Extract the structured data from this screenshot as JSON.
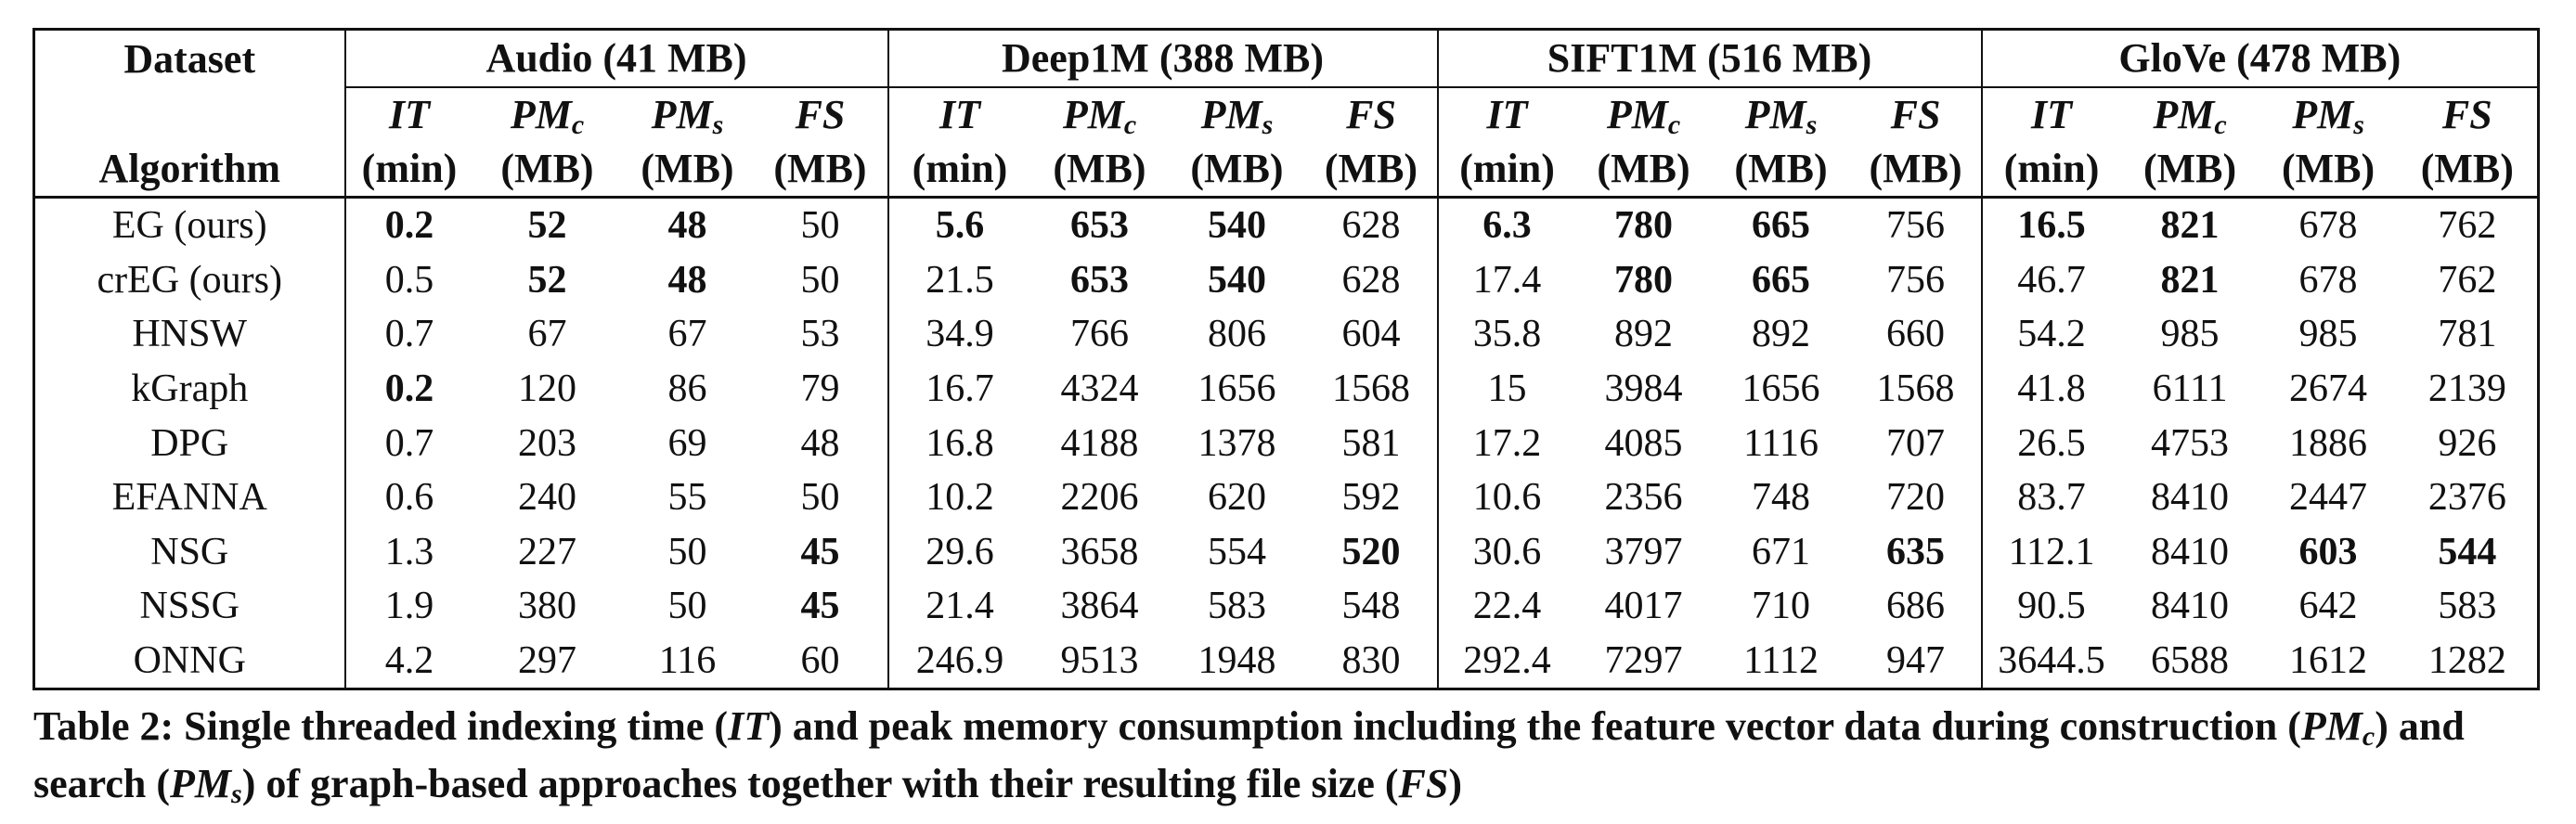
{
  "table": {
    "dataset_label": "Dataset",
    "algorithm_label": "Algorithm",
    "datasets": [
      {
        "name": "Audio (41 MB)"
      },
      {
        "name": "Deep1M (388 MB)"
      },
      {
        "name": "SIFT1M (516 MB)"
      },
      {
        "name": "GloVe (478 MB)"
      }
    ],
    "metrics": [
      {
        "main": "IT",
        "sub": "",
        "unit": "(min)"
      },
      {
        "main": "PM",
        "sub": "c",
        "unit": "(MB)"
      },
      {
        "main": "PM",
        "sub": "s",
        "unit": "(MB)"
      },
      {
        "main": "FS",
        "sub": "",
        "unit": "(MB)"
      }
    ],
    "rows": [
      {
        "algorithm": "EG (ours)",
        "values": [
          "0.2",
          "52",
          "48",
          "50",
          "5.6",
          "653",
          "540",
          "628",
          "6.3",
          "780",
          "665",
          "756",
          "16.5",
          "821",
          "678",
          "762"
        ],
        "bold": [
          true,
          true,
          true,
          false,
          true,
          true,
          true,
          false,
          true,
          true,
          true,
          false,
          true,
          true,
          false,
          false
        ]
      },
      {
        "algorithm": "crEG (ours)",
        "values": [
          "0.5",
          "52",
          "48",
          "50",
          "21.5",
          "653",
          "540",
          "628",
          "17.4",
          "780",
          "665",
          "756",
          "46.7",
          "821",
          "678",
          "762"
        ],
        "bold": [
          false,
          true,
          true,
          false,
          false,
          true,
          true,
          false,
          false,
          true,
          true,
          false,
          false,
          true,
          false,
          false
        ]
      },
      {
        "algorithm": "HNSW",
        "values": [
          "0.7",
          "67",
          "67",
          "53",
          "34.9",
          "766",
          "806",
          "604",
          "35.8",
          "892",
          "892",
          "660",
          "54.2",
          "985",
          "985",
          "781"
        ],
        "bold": [
          false,
          false,
          false,
          false,
          false,
          false,
          false,
          false,
          false,
          false,
          false,
          false,
          false,
          false,
          false,
          false
        ]
      },
      {
        "algorithm": "kGraph",
        "values": [
          "0.2",
          "120",
          "86",
          "79",
          "16.7",
          "4324",
          "1656",
          "1568",
          "15",
          "3984",
          "1656",
          "1568",
          "41.8",
          "6111",
          "2674",
          "2139"
        ],
        "bold": [
          true,
          false,
          false,
          false,
          false,
          false,
          false,
          false,
          false,
          false,
          false,
          false,
          false,
          false,
          false,
          false
        ]
      },
      {
        "algorithm": "DPG",
        "values": [
          "0.7",
          "203",
          "69",
          "48",
          "16.8",
          "4188",
          "1378",
          "581",
          "17.2",
          "4085",
          "1116",
          "707",
          "26.5",
          "4753",
          "1886",
          "926"
        ],
        "bold": [
          false,
          false,
          false,
          false,
          false,
          false,
          false,
          false,
          false,
          false,
          false,
          false,
          false,
          false,
          false,
          false
        ]
      },
      {
        "algorithm": "EFANNA",
        "values": [
          "0.6",
          "240",
          "55",
          "50",
          "10.2",
          "2206",
          "620",
          "592",
          "10.6",
          "2356",
          "748",
          "720",
          "83.7",
          "8410",
          "2447",
          "2376"
        ],
        "bold": [
          false,
          false,
          false,
          false,
          false,
          false,
          false,
          false,
          false,
          false,
          false,
          false,
          false,
          false,
          false,
          false
        ]
      },
      {
        "algorithm": "NSG",
        "values": [
          "1.3",
          "227",
          "50",
          "45",
          "29.6",
          "3658",
          "554",
          "520",
          "30.6",
          "3797",
          "671",
          "635",
          "112.1",
          "8410",
          "603",
          "544"
        ],
        "bold": [
          false,
          false,
          false,
          true,
          false,
          false,
          false,
          true,
          false,
          false,
          false,
          true,
          false,
          false,
          true,
          true
        ]
      },
      {
        "algorithm": "NSSG",
        "values": [
          "1.9",
          "380",
          "50",
          "45",
          "21.4",
          "3864",
          "583",
          "548",
          "22.4",
          "4017",
          "710",
          "686",
          "90.5",
          "8410",
          "642",
          "583"
        ],
        "bold": [
          false,
          false,
          false,
          true,
          false,
          false,
          false,
          false,
          false,
          false,
          false,
          false,
          false,
          false,
          false,
          false
        ]
      },
      {
        "algorithm": "ONNG",
        "values": [
          "4.2",
          "297",
          "116",
          "60",
          "246.9",
          "9513",
          "1948",
          "830",
          "292.4",
          "7297",
          "1112",
          "947",
          "3644.5",
          "6588",
          "1612",
          "1282"
        ],
        "bold": [
          false,
          false,
          false,
          false,
          false,
          false,
          false,
          false,
          false,
          false,
          false,
          false,
          false,
          false,
          false,
          false
        ]
      }
    ]
  },
  "caption": {
    "p1": "Table 2: Single threaded indexing time (",
    "it": "IT",
    "p2": ") and peak memory consumption including the feature vector data during construction (",
    "pm": "PM",
    "pmc_sub": "c",
    "p3": ") and search (",
    "pms_sub": "s",
    "p4": ") of graph-based approaches together with their resulting file size (",
    "fs": "FS",
    "p5": ")"
  }
}
